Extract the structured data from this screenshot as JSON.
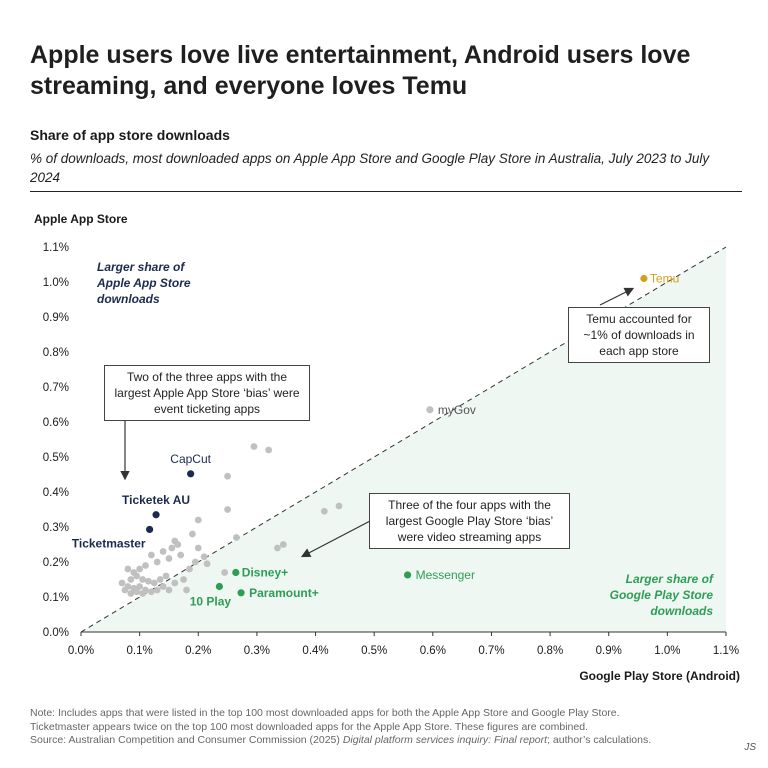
{
  "header": {
    "title": "Apple users love live entertainment, Android users love streaming, and everyone loves Temu",
    "subtitle": "Share of app store downloads",
    "description": "% of downloads, most downloaded apps on Apple App Store and Google Play Store in Australia, July 2023 to July 2024"
  },
  "annotations": {
    "ticketing": "Two of the three apps with the largest Apple App Store ‘bias’ were event ticketing apps",
    "streaming": "Three of the four apps with the largest Google Play Store ‘bias’ were video streaming apps",
    "temu": "Temu accounted for ~1% of downloads in each app store",
    "apple_region": "Larger share of Apple App Store downloads",
    "google_region": "Larger share of Google Play Store downloads"
  },
  "footer": {
    "note1": "Note: Includes apps that were listed in the top 100 most downloaded apps for both the Apple App Store and Google Play Store.",
    "note2": "Ticketmaster appears twice on the top 100 most downloaded apps for the Apple App Store. These figures are combined.",
    "source_prefix": "Source: Australian Competition and Consumer Commission (2025) ",
    "source_title": "Digital platform services inquiry: Final report",
    "source_suffix": "; author’s calculations.",
    "signature": "JS"
  },
  "colors": {
    "grey": "#c0c0c0",
    "navy": "#1b2a4e",
    "green": "#2e9e55",
    "gold": "#d4a017",
    "shade": "#eef7f2"
  },
  "chart_data": {
    "type": "scatter",
    "xlabel": "Google Play Store (Android)",
    "ylabel": "Apple App Store",
    "xlim": [
      0,
      1.1
    ],
    "ylim": [
      0,
      1.1
    ],
    "xticks": [
      0,
      0.1,
      0.2,
      0.3,
      0.4,
      0.5,
      0.6,
      0.7,
      0.8,
      0.9,
      1.0,
      1.1
    ],
    "yticks": [
      0,
      0.1,
      0.2,
      0.3,
      0.4,
      0.5,
      0.6,
      0.7,
      0.8,
      0.9,
      1.0,
      1.1
    ],
    "xtick_labels": [
      "0.0%",
      "0.1%",
      "0.2%",
      "0.3%",
      "0.4%",
      "0.5%",
      "0.6%",
      "0.7%",
      "0.8%",
      "0.9%",
      "1.0%",
      "1.1%"
    ],
    "ytick_labels": [
      "0.0%",
      "0.1%",
      "0.2%",
      "0.3%",
      "0.4%",
      "0.5%",
      "0.6%",
      "0.7%",
      "0.8%",
      "0.9%",
      "1.0%",
      "1.1%"
    ],
    "diagonal": true,
    "grid": false,
    "labeled_points": [
      {
        "label": "Temu",
        "x": 0.96,
        "y": 1.01,
        "color": "gold"
      },
      {
        "label": "myGov",
        "x": 0.595,
        "y": 0.635,
        "color": "grey"
      },
      {
        "label": "CapCut",
        "x": 0.187,
        "y": 0.452,
        "color": "navy"
      },
      {
        "label": "Ticketek AU",
        "x": 0.128,
        "y": 0.335,
        "color": "navy"
      },
      {
        "label": "Ticketmaster",
        "x": 0.117,
        "y": 0.293,
        "color": "navy"
      },
      {
        "label": "Disney+",
        "x": 0.264,
        "y": 0.17,
        "color": "green"
      },
      {
        "label": "10 Play",
        "x": 0.236,
        "y": 0.13,
        "color": "green"
      },
      {
        "label": "Paramount+",
        "x": 0.273,
        "y": 0.112,
        "color": "green"
      },
      {
        "label": "Messenger",
        "x": 0.557,
        "y": 0.163,
        "color": "green"
      }
    ],
    "other_points": [
      [
        0.295,
        0.53
      ],
      [
        0.32,
        0.52
      ],
      [
        0.25,
        0.445
      ],
      [
        0.25,
        0.35
      ],
      [
        0.265,
        0.27
      ],
      [
        0.2,
        0.32
      ],
      [
        0.19,
        0.28
      ],
      [
        0.2,
        0.24
      ],
      [
        0.195,
        0.2
      ],
      [
        0.185,
        0.18
      ],
      [
        0.16,
        0.26
      ],
      [
        0.165,
        0.25
      ],
      [
        0.155,
        0.24
      ],
      [
        0.14,
        0.23
      ],
      [
        0.17,
        0.22
      ],
      [
        0.15,
        0.21
      ],
      [
        0.12,
        0.22
      ],
      [
        0.13,
        0.2
      ],
      [
        0.11,
        0.19
      ],
      [
        0.1,
        0.18
      ],
      [
        0.09,
        0.17
      ],
      [
        0.08,
        0.18
      ],
      [
        0.085,
        0.15
      ],
      [
        0.095,
        0.16
      ],
      [
        0.105,
        0.15
      ],
      [
        0.115,
        0.145
      ],
      [
        0.125,
        0.14
      ],
      [
        0.135,
        0.15
      ],
      [
        0.145,
        0.16
      ],
      [
        0.08,
        0.13
      ],
      [
        0.09,
        0.125
      ],
      [
        0.1,
        0.13
      ],
      [
        0.11,
        0.12
      ],
      [
        0.12,
        0.115
      ],
      [
        0.13,
        0.12
      ],
      [
        0.14,
        0.13
      ],
      [
        0.075,
        0.12
      ],
      [
        0.085,
        0.11
      ],
      [
        0.095,
        0.115
      ],
      [
        0.105,
        0.11
      ],
      [
        0.15,
        0.12
      ],
      [
        0.16,
        0.14
      ],
      [
        0.175,
        0.15
      ],
      [
        0.18,
        0.12
      ],
      [
        0.07,
        0.14
      ],
      [
        0.245,
        0.17
      ],
      [
        0.415,
        0.345
      ],
      [
        0.44,
        0.36
      ],
      [
        0.335,
        0.24
      ],
      [
        0.345,
        0.25
      ],
      [
        0.215,
        0.195
      ],
      [
        0.21,
        0.215
      ]
    ]
  }
}
